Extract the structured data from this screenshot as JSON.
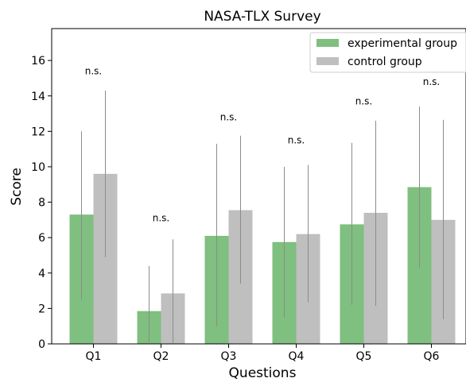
{
  "chart_data": {
    "type": "bar",
    "title": "NASA-TLX Survey",
    "xlabel": "Questions",
    "ylabel": "Score",
    "categories": [
      "Q1",
      "Q2",
      "Q3",
      "Q4",
      "Q5",
      "Q6"
    ],
    "ylim": [
      0,
      17.8
    ],
    "yticks": [
      0,
      2,
      4,
      6,
      8,
      10,
      12,
      14,
      16
    ],
    "grid": false,
    "legend_position": "top-right",
    "series": [
      {
        "name": "experimental group",
        "color": "#7fbf7f",
        "values": [
          7.3,
          1.85,
          6.1,
          5.75,
          6.75,
          8.85
        ],
        "err_low": [
          2.5,
          0.1,
          1.0,
          1.5,
          2.2,
          4.3
        ],
        "err_high": [
          12.0,
          4.4,
          11.3,
          10.0,
          11.35,
          13.4
        ]
      },
      {
        "name": "control group",
        "color": "#bfbfbf",
        "values": [
          9.6,
          2.85,
          7.55,
          6.2,
          7.4,
          7.0
        ],
        "err_low": [
          4.9,
          0.05,
          3.4,
          2.35,
          2.15,
          1.4
        ],
        "err_high": [
          14.3,
          5.9,
          11.75,
          10.1,
          12.6,
          12.65
        ]
      }
    ],
    "annotations": [
      {
        "text": "n.s.",
        "category": 0,
        "y": 15.4
      },
      {
        "text": "n.s.",
        "category": 1,
        "y": 7.1
      },
      {
        "text": "n.s.",
        "category": 2,
        "y": 12.8
      },
      {
        "text": "n.s.",
        "category": 3,
        "y": 11.5
      },
      {
        "text": "n.s.",
        "category": 4,
        "y": 13.7
      },
      {
        "text": "n.s.",
        "category": 5,
        "y": 14.8
      }
    ]
  }
}
